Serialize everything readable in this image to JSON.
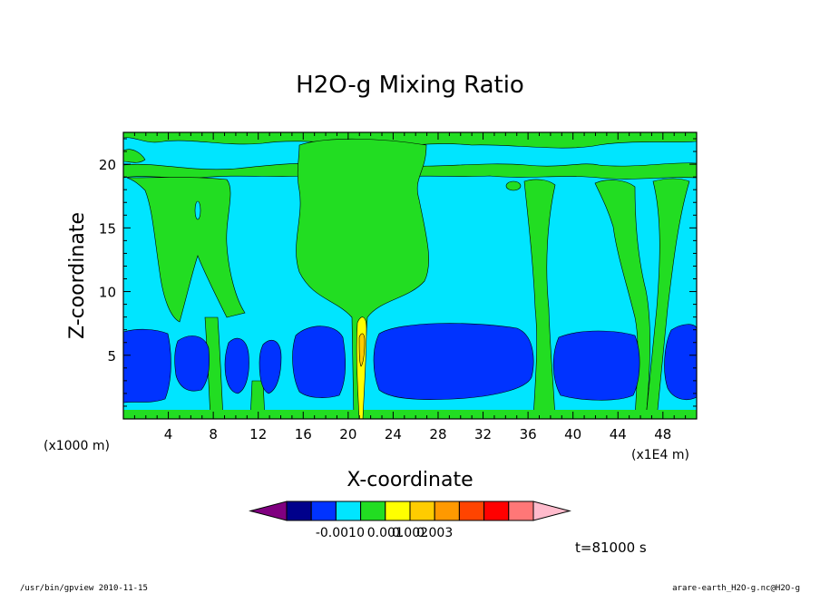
{
  "chart_data": {
    "type": "heatmap",
    "title": "H2O-g Mixing Ratio",
    "xlabel": "X-coordinate",
    "ylabel": "Z-coordinate",
    "x_unit_left": "(x1000 m)",
    "x_unit_right": "(x1E4 m)",
    "x_ticks": [
      4,
      8,
      12,
      16,
      20,
      24,
      28,
      32,
      36,
      40,
      44,
      48
    ],
    "y_ticks": [
      5,
      10,
      15,
      20
    ],
    "xlim": [
      0,
      51
    ],
    "ylim": [
      0,
      22.5
    ],
    "grid": false,
    "colorbar": {
      "colors": [
        "#800080",
        "#00008b",
        "#0033ff",
        "#00e5ff",
        "#22dd22",
        "#ffff00",
        "#ffcc00",
        "#ff9900",
        "#ff4400",
        "#ff0000",
        "#ff7777",
        "#ffbbcc"
      ],
      "labels": [
        "-0.001",
        "0",
        "0.001",
        "0.002",
        "0.003"
      ]
    },
    "field_levels": {
      "dark_blue": "#0033ff",
      "navy": "#00008b",
      "cyan": "#00e5ff",
      "green": "#22dd22",
      "yellow": "#ffff00",
      "orange": "#ffcc00"
    },
    "time_label": "t=81000 s"
  },
  "footer": {
    "left": "/usr/bin/gpview   2010-11-15",
    "right": "arare-earth_H2O-g.nc@H2O-g"
  }
}
